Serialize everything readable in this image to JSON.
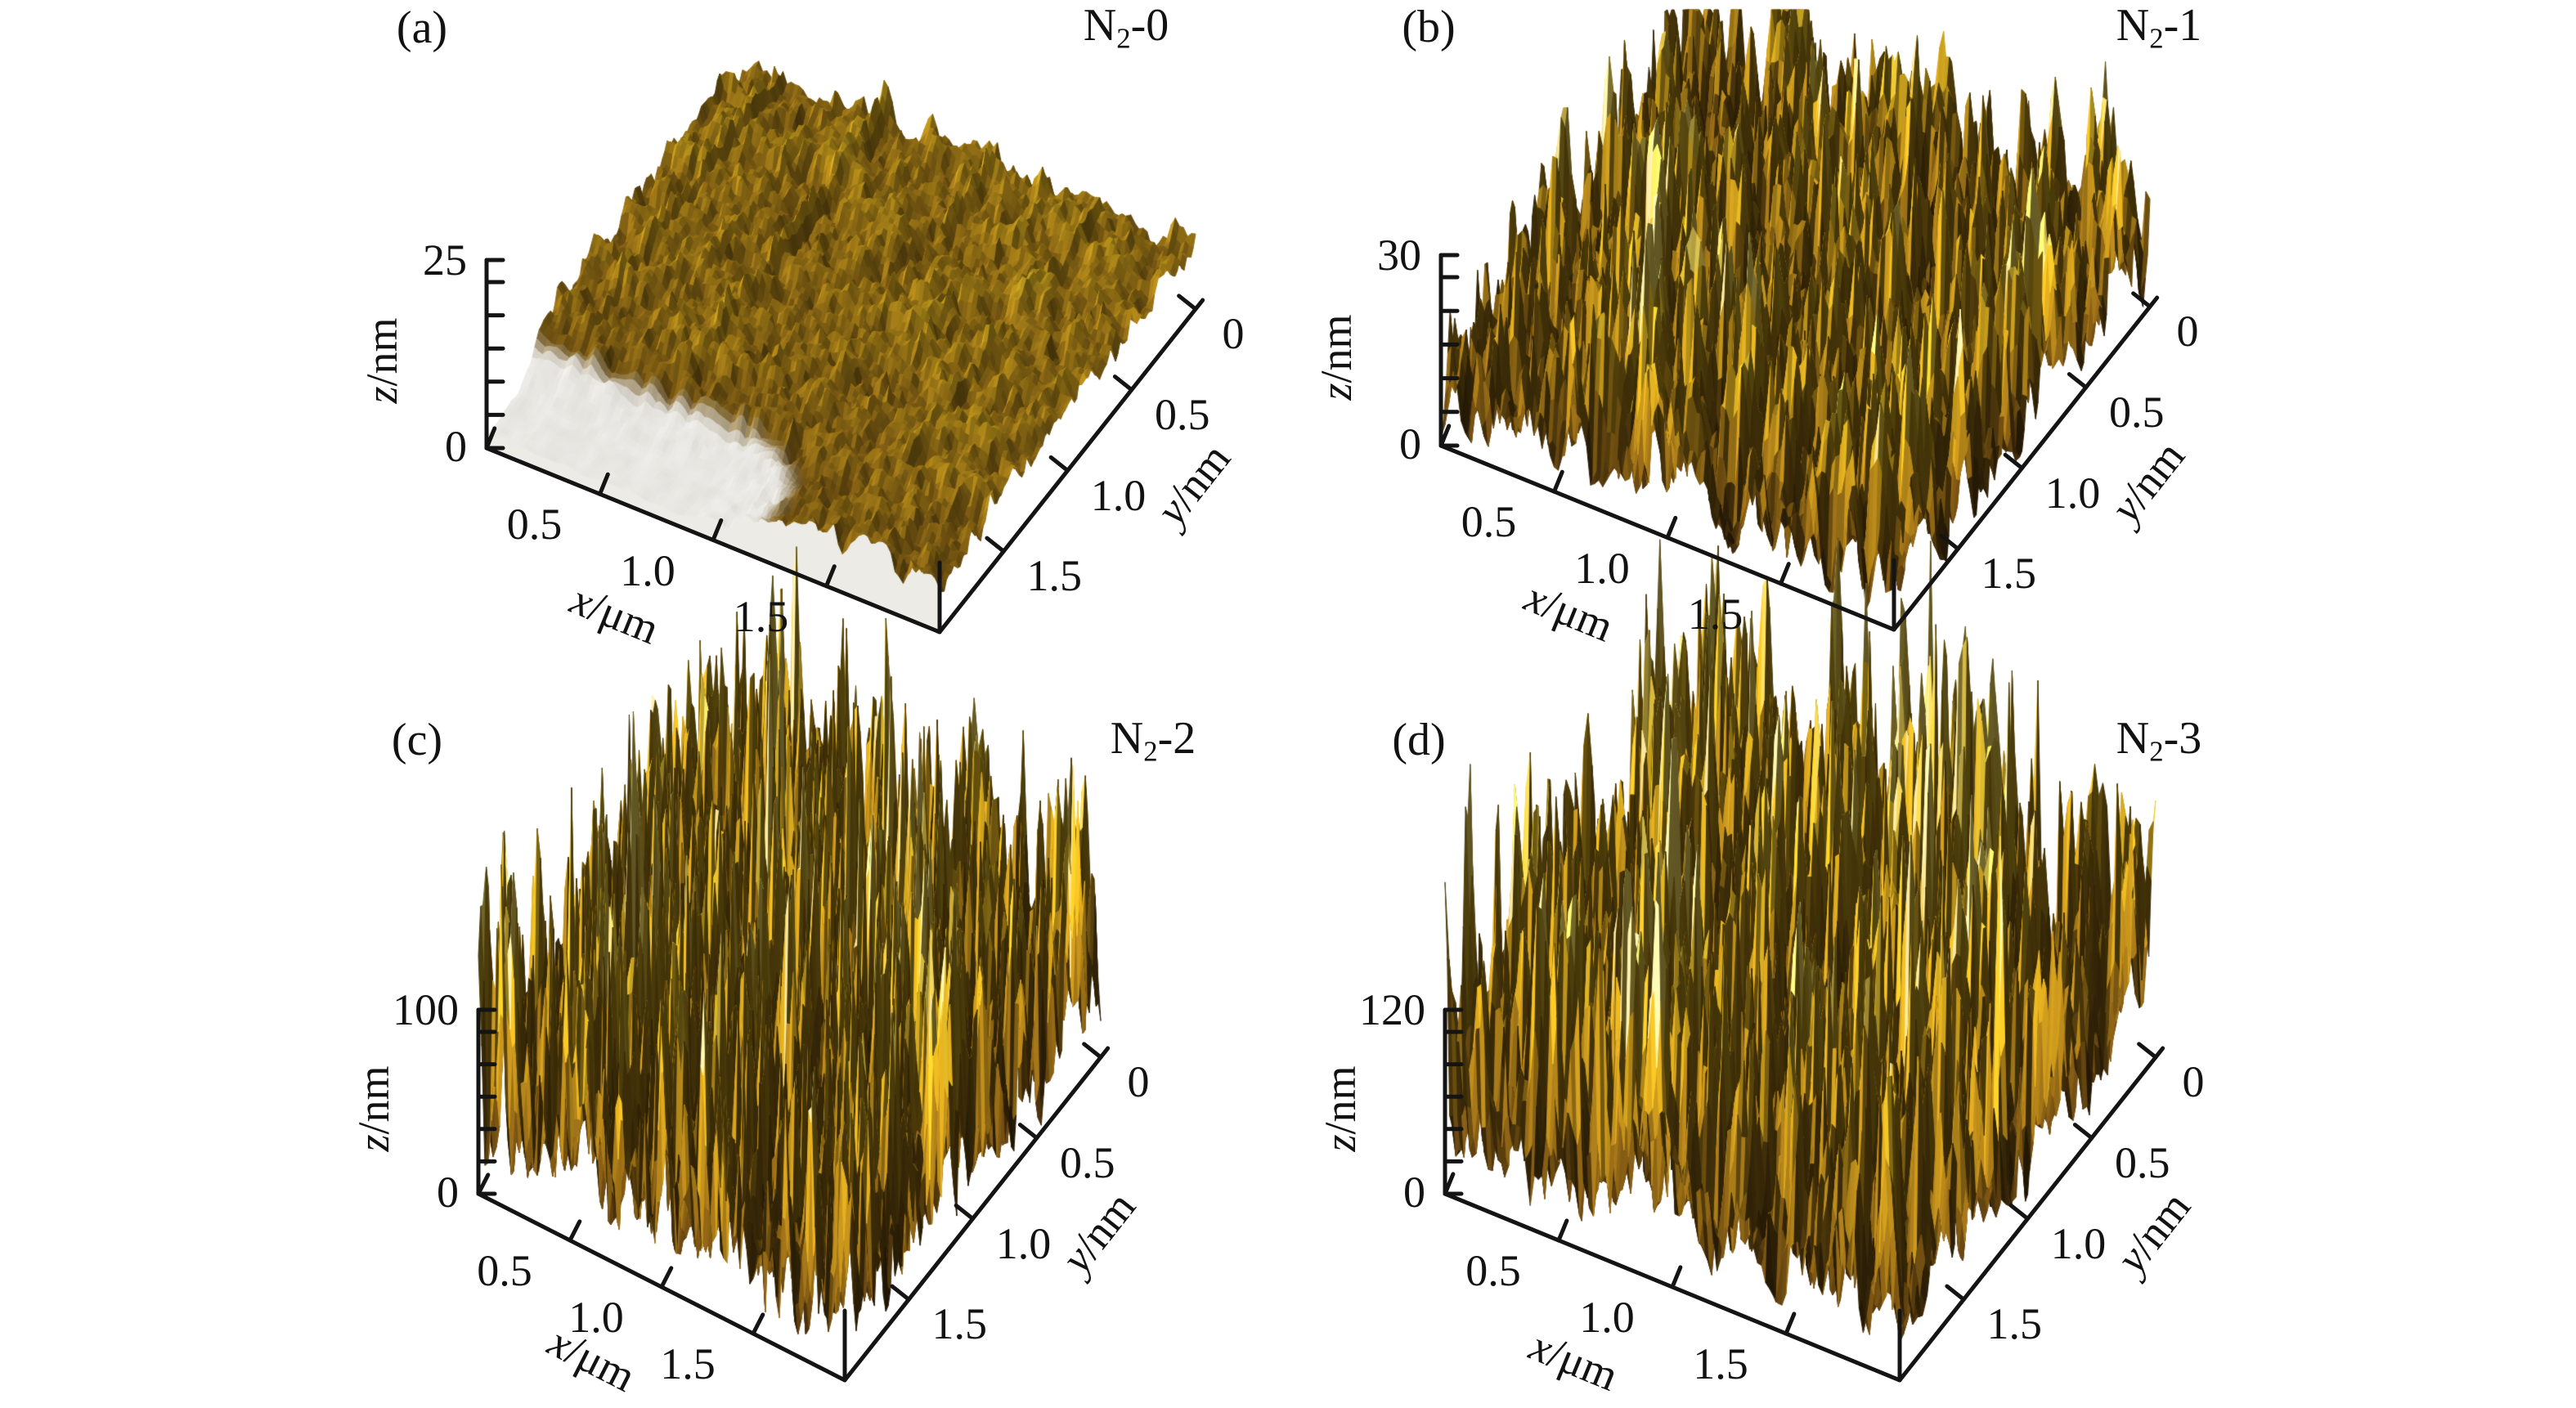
{
  "figure": {
    "background": "#ffffff",
    "panels": [
      {
        "id": "a",
        "panel_label": "(a)",
        "sample_label": {
          "base": "N",
          "sub": "2",
          "rest": "-0"
        },
        "z_axis": {
          "var": "z",
          "unit": "/nm",
          "max_label": "25",
          "min_label": "0"
        },
        "x_axis": {
          "var": "x",
          "unit": "/μm",
          "ticks": [
            "0.5",
            "1.0",
            "1.5"
          ]
        },
        "y_axis": {
          "var": "y",
          "unit": "/nm",
          "ticks": [
            "0",
            "0.5",
            "1.0",
            "1.5"
          ]
        }
      },
      {
        "id": "b",
        "panel_label": "(b)",
        "sample_label": {
          "base": "N",
          "sub": "2",
          "rest": "-1"
        },
        "z_axis": {
          "var": "z",
          "unit": "/nm",
          "max_label": "30",
          "min_label": "0"
        },
        "x_axis": {
          "var": "x",
          "unit": "/μm",
          "ticks": [
            "0.5",
            "1.0",
            "1.5"
          ]
        },
        "y_axis": {
          "var": "y",
          "unit": "/nm",
          "ticks": [
            "0",
            "0.5",
            "1.0",
            "1.5"
          ]
        }
      },
      {
        "id": "c",
        "panel_label": "(c)",
        "sample_label": {
          "base": "N",
          "sub": "2",
          "rest": "-2"
        },
        "z_axis": {
          "var": "z",
          "unit": "/nm",
          "max_label": "100",
          "min_label": "0"
        },
        "x_axis": {
          "var": "x",
          "unit": "/μm",
          "ticks": [
            "0.5",
            "1.0",
            "1.5"
          ]
        },
        "y_axis": {
          "var": "y",
          "unit": "/nm",
          "ticks": [
            "0",
            "0.5",
            "1.0",
            "1.5"
          ]
        }
      },
      {
        "id": "d",
        "panel_label": "(d)",
        "sample_label": {
          "base": "N",
          "sub": "2",
          "rest": "-3"
        },
        "z_axis": {
          "var": "z",
          "unit": "/nm",
          "max_label": "120",
          "min_label": "0"
        },
        "x_axis": {
          "var": "x",
          "unit": "/μm",
          "ticks": [
            "0.5",
            "1.0",
            "1.5"
          ]
        },
        "y_axis": {
          "var": "y",
          "unit": "/nm",
          "ticks": [
            "0",
            "0.5",
            "1.0",
            "1.5"
          ]
        }
      }
    ]
  },
  "chart_data": [
    {
      "type": "surface-3d",
      "panel": "(a)",
      "series_label": "N2-0",
      "xlabel": "x/μm",
      "ylabel": "y/nm",
      "zlabel": "z/nm",
      "xlim": [
        0,
        2
      ],
      "ylim": [
        0,
        2
      ],
      "zlim": [
        0,
        25
      ],
      "xticks": [
        0.5,
        1.0,
        1.5
      ],
      "yticks": [
        0,
        0.5,
        1.0,
        1.5
      ],
      "zticks": [
        0,
        25
      ],
      "legend": "none",
      "grid": false,
      "description": "AFM 3D topography, gold colormap: smooth fine-grained film with low relief (z scale 0-25 nm), faint bright scan-line streaks running along the y direction, pale smooth low region along the front-left edge."
    },
    {
      "type": "surface-3d",
      "panel": "(b)",
      "series_label": "N2-1",
      "xlabel": "x/μm",
      "ylabel": "y/nm",
      "zlabel": "z/nm",
      "xlim": [
        0,
        2
      ],
      "ylim": [
        0,
        2
      ],
      "zlim": [
        0,
        30
      ],
      "xticks": [
        0.5,
        1.0,
        1.5
      ],
      "yticks": [
        0,
        0.5,
        1.0,
        1.5
      ],
      "zticks": [
        0,
        30
      ],
      "legend": "none",
      "grid": false,
      "description": "AFM 3D topography, gold colormap: dense field of sharp nanoscale peaks and pits covering the whole 2x2 um area, moderate relief (z scale 0-30 nm)."
    },
    {
      "type": "surface-3d",
      "panel": "(c)",
      "series_label": "N2-2",
      "xlabel": "x/μm",
      "ylabel": "y/nm",
      "zlabel": "z/nm",
      "xlim": [
        0,
        2
      ],
      "ylim": [
        0,
        2
      ],
      "zlim": [
        0,
        100
      ],
      "xticks": [
        0.5,
        1.0,
        1.5
      ],
      "yticks": [
        0,
        0.5,
        1.0,
        1.5
      ],
      "zticks": [
        0,
        100
      ],
      "legend": "none",
      "grid": false,
      "description": "AFM 3D topography, gold colormap: tall sharp conical grains (grass-like spikes) with deep valleys, high relief (z scale 0-100 nm)."
    },
    {
      "type": "surface-3d",
      "panel": "(d)",
      "series_label": "N2-3",
      "xlabel": "x/μm",
      "ylabel": "y/nm",
      "zlabel": "z/nm",
      "xlim": [
        0,
        2
      ],
      "ylim": [
        0,
        2
      ],
      "zlim": [
        0,
        120
      ],
      "xticks": [
        0.5,
        1.0,
        1.5
      ],
      "yticks": [
        0,
        0.5,
        1.0,
        1.5
      ],
      "zticks": [
        0,
        120
      ],
      "legend": "none",
      "grid": false,
      "description": "AFM 3D topography, gold colormap: tall sharp conical grains slightly coarser than panel (c), highest relief (z scale 0-120 nm)."
    }
  ],
  "colors": {
    "background": "#ffffff",
    "axis": "#141414",
    "text": "#121212",
    "surface_low": "#2c1c09",
    "surface_mid": "#805f13",
    "surface_high": "#d6be50",
    "specular": "#f0ead0",
    "substrate": "#efeee9"
  }
}
